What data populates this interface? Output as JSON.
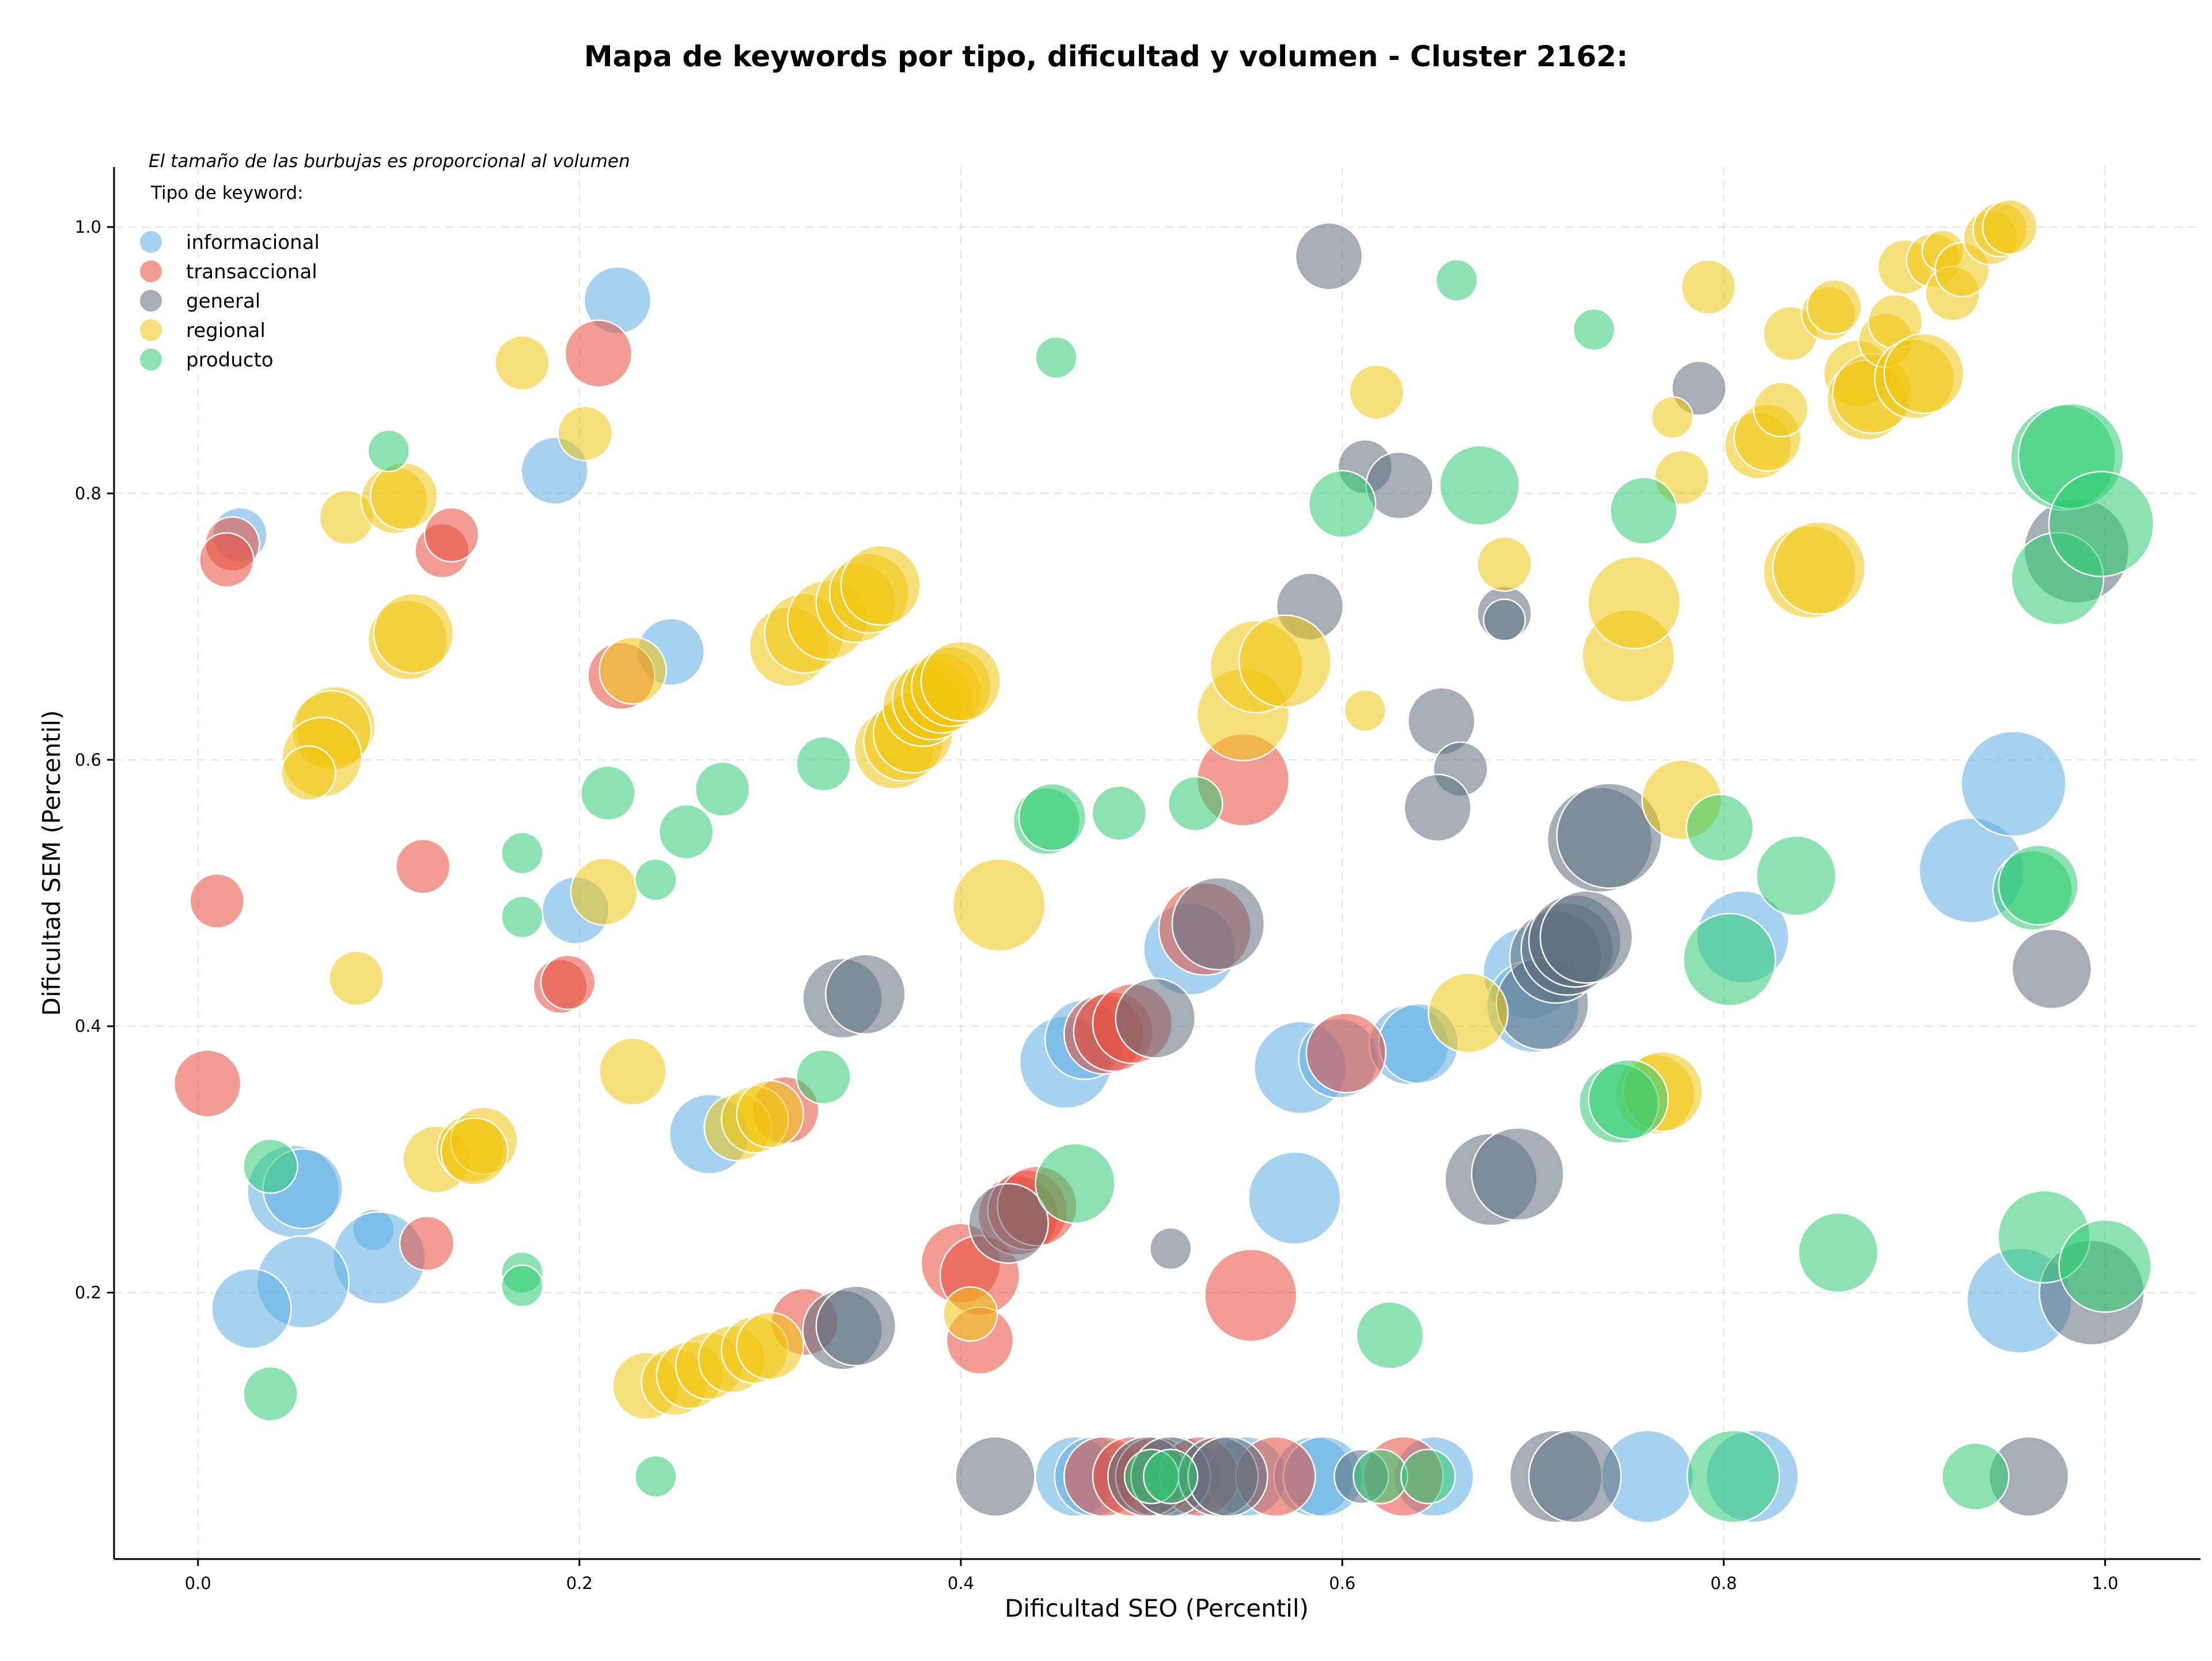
{
  "chart_data": {
    "type": "scatter",
    "title": "Mapa de keywords por tipo, dificultad y volumen - Cluster 2162:",
    "xlabel": "Dificultad SEO (Percentil)",
    "ylabel": "Dificultad SEM (Percentil)",
    "note": "El tamaño de las burbujas es proporcional al volumen",
    "legend_title": "Tipo de keyword:",
    "legend_position": "top-left",
    "grid": true,
    "xlim": [
      -0.044,
      1.05
    ],
    "ylim": [
      0.0,
      1.045
    ],
    "xticks": [
      0.0,
      0.2,
      0.4,
      0.6,
      0.8,
      1.0
    ],
    "xtick_labels": [
      "0.0",
      "0.2",
      "0.4",
      "0.6",
      "0.8",
      "1.0"
    ],
    "yticks": [
      0.2,
      0.4,
      0.6,
      0.8,
      1.0
    ],
    "ytick_labels": [
      "0.2",
      "0.4",
      "0.6",
      "0.8",
      "1.0"
    ],
    "series": [
      {
        "name": "informacional",
        "color": "#5DADE2",
        "points": [
          [
            0.022,
            0.769,
            3
          ],
          [
            0.22,
            0.945,
            4
          ],
          [
            0.187,
            0.817,
            4
          ],
          [
            0.248,
            0.681,
            4
          ],
          [
            0.198,
            0.487,
            4
          ],
          [
            0.05,
            0.276,
            6
          ],
          [
            0.055,
            0.278,
            5
          ],
          [
            0.092,
            0.247,
            2
          ],
          [
            0.095,
            0.226,
            6
          ],
          [
            0.055,
            0.208,
            6
          ],
          [
            0.028,
            0.188,
            5
          ],
          [
            0.268,
            0.319,
            5
          ],
          [
            0.455,
            0.373,
            6
          ],
          [
            0.465,
            0.39,
            5
          ],
          [
            0.52,
            0.458,
            6
          ],
          [
            0.578,
            0.369,
            6
          ],
          [
            0.598,
            0.376,
            5
          ],
          [
            0.635,
            0.386,
            5
          ],
          [
            0.64,
            0.387,
            5
          ],
          [
            0.575,
            0.271,
            6
          ],
          [
            0.698,
            0.44,
            6
          ],
          [
            0.7,
            0.415,
            6
          ],
          [
            0.81,
            0.467,
            6
          ],
          [
            0.93,
            0.517,
            7
          ],
          [
            0.952,
            0.582,
            7
          ],
          [
            0.955,
            0.194,
            7
          ],
          [
            0.46,
            0.062,
            5
          ],
          [
            0.47,
            0.062,
            5
          ],
          [
            0.515,
            0.062,
            5
          ],
          [
            0.55,
            0.062,
            5
          ],
          [
            0.585,
            0.062,
            5
          ],
          [
            0.59,
            0.062,
            5
          ],
          [
            0.648,
            0.062,
            5
          ],
          [
            0.76,
            0.062,
            6
          ],
          [
            0.815,
            0.062,
            6
          ]
        ]
      },
      {
        "name": "transaccional",
        "color": "#E74C3C",
        "points": [
          [
            0.018,
            0.762,
            3
          ],
          [
            0.015,
            0.75,
            3
          ],
          [
            0.128,
            0.757,
            3
          ],
          [
            0.133,
            0.769,
            3
          ],
          [
            0.21,
            0.905,
            4
          ],
          [
            0.222,
            0.663,
            4
          ],
          [
            0.118,
            0.52,
            3
          ],
          [
            0.01,
            0.494,
            3
          ],
          [
            0.19,
            0.43,
            3
          ],
          [
            0.194,
            0.433,
            3
          ],
          [
            0.005,
            0.357,
            4
          ],
          [
            0.12,
            0.237,
            3
          ],
          [
            0.308,
            0.337,
            4
          ],
          [
            0.318,
            0.178,
            4
          ],
          [
            0.4,
            0.222,
            5
          ],
          [
            0.41,
            0.213,
            5
          ],
          [
            0.41,
            0.164,
            4
          ],
          [
            0.43,
            0.258,
            5
          ],
          [
            0.435,
            0.262,
            5
          ],
          [
            0.44,
            0.265,
            5
          ],
          [
            0.475,
            0.394,
            5
          ],
          [
            0.48,
            0.396,
            5
          ],
          [
            0.49,
            0.402,
            5
          ],
          [
            0.528,
            0.473,
            6
          ],
          [
            0.548,
            0.585,
            6
          ],
          [
            0.552,
            0.198,
            6
          ],
          [
            0.602,
            0.38,
            5
          ],
          [
            0.475,
            0.062,
            5
          ],
          [
            0.49,
            0.062,
            5
          ],
          [
            0.502,
            0.062,
            5
          ],
          [
            0.525,
            0.062,
            5
          ],
          [
            0.565,
            0.062,
            5
          ],
          [
            0.632,
            0.062,
            5
          ]
        ]
      },
      {
        "name": "general",
        "color": "#5D6D7E",
        "points": [
          [
            0.593,
            0.978,
            4
          ],
          [
            0.787,
            0.879,
            3
          ],
          [
            0.612,
            0.82,
            3
          ],
          [
            0.63,
            0.806,
            4
          ],
          [
            0.583,
            0.715,
            4
          ],
          [
            0.685,
            0.71,
            3
          ],
          [
            0.685,
            0.705,
            2
          ],
          [
            0.652,
            0.629,
            4
          ],
          [
            0.662,
            0.593,
            3
          ],
          [
            0.65,
            0.564,
            4
          ],
          [
            0.338,
            0.421,
            5
          ],
          [
            0.35,
            0.424,
            5
          ],
          [
            0.502,
            0.406,
            5
          ],
          [
            0.535,
            0.477,
            6
          ],
          [
            0.425,
            0.252,
            5
          ],
          [
            0.338,
            0.172,
            5
          ],
          [
            0.345,
            0.175,
            5
          ],
          [
            0.51,
            0.233,
            2
          ],
          [
            0.678,
            0.285,
            6
          ],
          [
            0.692,
            0.289,
            6
          ],
          [
            0.705,
            0.417,
            6
          ],
          [
            0.712,
            0.452,
            6
          ],
          [
            0.718,
            0.458,
            6
          ],
          [
            0.722,
            0.464,
            6
          ],
          [
            0.728,
            0.467,
            6
          ],
          [
            0.735,
            0.54,
            7
          ],
          [
            0.74,
            0.543,
            7
          ],
          [
            0.972,
            0.443,
            5
          ],
          [
            0.985,
            0.757,
            7
          ],
          [
            0.993,
            0.2,
            7
          ],
          [
            0.418,
            0.062,
            5
          ],
          [
            0.498,
            0.062,
            5
          ],
          [
            0.51,
            0.062,
            5
          ],
          [
            0.535,
            0.062,
            5
          ],
          [
            0.54,
            0.062,
            5
          ],
          [
            0.61,
            0.062,
            3
          ],
          [
            0.712,
            0.062,
            6
          ],
          [
            0.722,
            0.062,
            6
          ],
          [
            0.96,
            0.062,
            5
          ]
        ]
      },
      {
        "name": "regional",
        "color": "#F1C40F",
        "points": [
          [
            0.17,
            0.898,
            3
          ],
          [
            0.203,
            0.845,
            3
          ],
          [
            0.078,
            0.782,
            3
          ],
          [
            0.103,
            0.795,
            4
          ],
          [
            0.108,
            0.798,
            4
          ],
          [
            0.11,
            0.69,
            5
          ],
          [
            0.113,
            0.695,
            5
          ],
          [
            0.072,
            0.625,
            5
          ],
          [
            0.07,
            0.622,
            5
          ],
          [
            0.065,
            0.602,
            5
          ],
          [
            0.058,
            0.59,
            3
          ],
          [
            0.083,
            0.436,
            3
          ],
          [
            0.213,
            0.501,
            4
          ],
          [
            0.228,
            0.667,
            4
          ],
          [
            0.228,
            0.366,
            4
          ],
          [
            0.125,
            0.3,
            4
          ],
          [
            0.143,
            0.308,
            4
          ],
          [
            0.15,
            0.314,
            4
          ],
          [
            0.145,
            0.306,
            4
          ],
          [
            0.235,
            0.13,
            4
          ],
          [
            0.25,
            0.133,
            4
          ],
          [
            0.258,
            0.138,
            4
          ],
          [
            0.268,
            0.145,
            4
          ],
          [
            0.28,
            0.15,
            4
          ],
          [
            0.292,
            0.157,
            4
          ],
          [
            0.3,
            0.16,
            4
          ],
          [
            0.283,
            0.324,
            4
          ],
          [
            0.292,
            0.33,
            4
          ],
          [
            0.3,
            0.334,
            4
          ],
          [
            0.31,
            0.685,
            5
          ],
          [
            0.318,
            0.695,
            5
          ],
          [
            0.33,
            0.705,
            5
          ],
          [
            0.345,
            0.718,
            5
          ],
          [
            0.352,
            0.725,
            5
          ],
          [
            0.358,
            0.731,
            5
          ],
          [
            0.365,
            0.608,
            5
          ],
          [
            0.37,
            0.614,
            5
          ],
          [
            0.375,
            0.62,
            5
          ],
          [
            0.38,
            0.64,
            5
          ],
          [
            0.385,
            0.645,
            5
          ],
          [
            0.39,
            0.65,
            5
          ],
          [
            0.395,
            0.655,
            5
          ],
          [
            0.4,
            0.659,
            5
          ],
          [
            0.42,
            0.491,
            6
          ],
          [
            0.405,
            0.184,
            3
          ],
          [
            0.548,
            0.634,
            6
          ],
          [
            0.555,
            0.67,
            6
          ],
          [
            0.57,
            0.674,
            6
          ],
          [
            0.612,
            0.637,
            2
          ],
          [
            0.618,
            0.876,
            3
          ],
          [
            0.666,
            0.41,
            5
          ],
          [
            0.685,
            0.747,
            3
          ],
          [
            0.75,
            0.678,
            6
          ],
          [
            0.753,
            0.718,
            6
          ],
          [
            0.764,
            0.349,
            5
          ],
          [
            0.768,
            0.351,
            5
          ],
          [
            0.778,
            0.57,
            5
          ],
          [
            0.778,
            0.812,
            3
          ],
          [
            0.773,
            0.857,
            2
          ],
          [
            0.792,
            0.955,
            3
          ],
          [
            0.818,
            0.836,
            4
          ],
          [
            0.823,
            0.842,
            4
          ],
          [
            0.83,
            0.863,
            3
          ],
          [
            0.835,
            0.92,
            3
          ],
          [
            0.845,
            0.741,
            6
          ],
          [
            0.85,
            0.744,
            6
          ],
          [
            0.855,
            0.935,
            3
          ],
          [
            0.858,
            0.94,
            3
          ],
          [
            0.87,
            0.89,
            4
          ],
          [
            0.875,
            0.87,
            5
          ],
          [
            0.878,
            0.875,
            5
          ],
          [
            0.885,
            0.915,
            3
          ],
          [
            0.89,
            0.929,
            3
          ],
          [
            0.895,
            0.97,
            3
          ],
          [
            0.9,
            0.886,
            5
          ],
          [
            0.905,
            0.89,
            5
          ],
          [
            0.91,
            0.975,
            3
          ],
          [
            0.915,
            0.982,
            2
          ],
          [
            0.92,
            0.95,
            3
          ],
          [
            0.925,
            0.968,
            3
          ],
          [
            0.94,
            0.992,
            3
          ],
          [
            0.945,
            0.998,
            3
          ],
          [
            0.95,
            1.0,
            3
          ]
        ]
      },
      {
        "name": "producto",
        "color": "#2ECC71",
        "points": [
          [
            0.1,
            0.832,
            2
          ],
          [
            0.17,
            0.53,
            2
          ],
          [
            0.17,
            0.482,
            2
          ],
          [
            0.17,
            0.215,
            2
          ],
          [
            0.17,
            0.205,
            2
          ],
          [
            0.038,
            0.295,
            3
          ],
          [
            0.038,
            0.124,
            3
          ],
          [
            0.215,
            0.575,
            3
          ],
          [
            0.24,
            0.51,
            2
          ],
          [
            0.256,
            0.546,
            3
          ],
          [
            0.275,
            0.578,
            3
          ],
          [
            0.24,
            0.062,
            2
          ],
          [
            0.328,
            0.597,
            3
          ],
          [
            0.328,
            0.362,
            3
          ],
          [
            0.45,
            0.902,
            2
          ],
          [
            0.445,
            0.554,
            4
          ],
          [
            0.448,
            0.557,
            4
          ],
          [
            0.46,
            0.282,
            5
          ],
          [
            0.483,
            0.56,
            3
          ],
          [
            0.523,
            0.567,
            3
          ],
          [
            0.6,
            0.792,
            4
          ],
          [
            0.625,
            0.168,
            4
          ],
          [
            0.66,
            0.96,
            2
          ],
          [
            0.672,
            0.806,
            5
          ],
          [
            0.732,
            0.923,
            2
          ],
          [
            0.745,
            0.342,
            5
          ],
          [
            0.75,
            0.345,
            5
          ],
          [
            0.758,
            0.787,
            4
          ],
          [
            0.798,
            0.549,
            4
          ],
          [
            0.803,
            0.45,
            6
          ],
          [
            0.838,
            0.513,
            5
          ],
          [
            0.86,
            0.23,
            5
          ],
          [
            0.962,
            0.502,
            5
          ],
          [
            0.965,
            0.506,
            5
          ],
          [
            0.968,
            0.242,
            6
          ],
          [
            0.975,
            0.736,
            6
          ],
          [
            0.978,
            0.827,
            7
          ],
          [
            0.982,
            0.828,
            7
          ],
          [
            0.998,
            0.777,
            7
          ],
          [
            1.0,
            0.22,
            6
          ],
          [
            0.5,
            0.062,
            3
          ],
          [
            0.51,
            0.062,
            3
          ],
          [
            0.62,
            0.062,
            3
          ],
          [
            0.645,
            0.062,
            3
          ],
          [
            0.805,
            0.062,
            6
          ],
          [
            0.932,
            0.062,
            4
          ]
        ]
      }
    ]
  }
}
